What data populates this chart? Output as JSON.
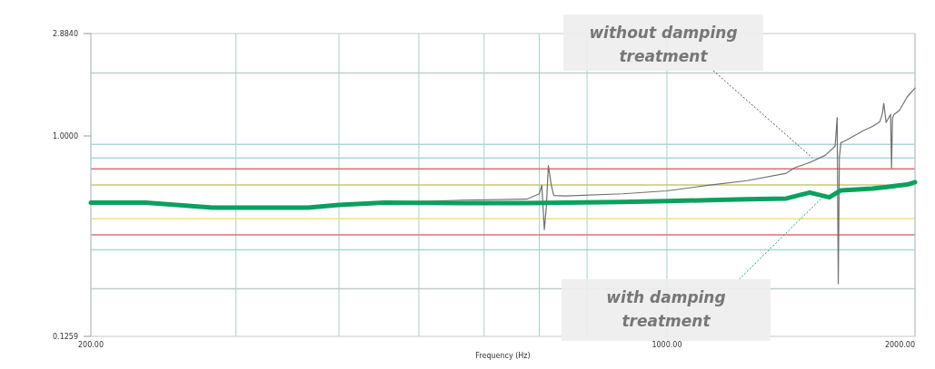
{
  "chart_data": {
    "type": "line",
    "xlabel": "Frequency (Hz)",
    "log": "xy",
    "xlim": [
      200,
      2000
    ],
    "ylim": [
      0.1259,
      2.884
    ],
    "xticks": [
      {
        "value": 200,
        "label": "200.00"
      },
      {
        "value": 300,
        "label": null
      },
      {
        "value": 400,
        "label": null
      },
      {
        "value": 500,
        "label": null
      },
      {
        "value": 600,
        "label": null
      },
      {
        "value": 700,
        "label": null
      },
      {
        "value": 800,
        "label": null
      },
      {
        "value": 1000,
        "label": "1000.00"
      },
      {
        "value": 2000,
        "label": "2000.00"
      }
    ],
    "yticks": [
      {
        "value": 0.1259,
        "label": "0.1259"
      },
      {
        "value": 1,
        "label": "1.0000"
      },
      {
        "value": 2.884,
        "label": "2.8840"
      }
    ],
    "grid": "x",
    "line_style": "solid",
    "ref_lines": [
      {
        "axis": "y",
        "value": 1.92,
        "color": "#c0cccc"
      },
      {
        "axis": "y",
        "value": 0.917,
        "color": "#a8d8dc"
      },
      {
        "axis": "y",
        "value": 0.797,
        "color": "#a8d8dc"
      },
      {
        "axis": "y",
        "value": 0.711,
        "color": "#e07070"
      },
      {
        "axis": "y",
        "value": 0.603,
        "color": "#c8c878"
      },
      {
        "axis": "y",
        "value": 0.425,
        "color": "#f0e088"
      },
      {
        "axis": "y",
        "value": 0.36,
        "color": "#e07070"
      },
      {
        "axis": "y",
        "value": 0.308,
        "color": "#a8d8dc"
      },
      {
        "axis": "y",
        "value": 0.206,
        "color": "#c0cccc"
      }
    ],
    "series": [
      {
        "name": "without damping treatment",
        "color": "#707070",
        "x": [
          454,
          563,
          676,
          700,
          705,
          710,
          714,
          718,
          724,
          729,
          753,
          884,
          1000,
          1122,
          1251,
          1396,
          1427,
          1490,
          1556,
          1600,
          1609,
          1614,
          1619,
          1626,
          1644,
          1736,
          1774,
          1813,
          1825,
          1833,
          1845,
          1868,
          1873,
          1878,
          1886,
          1914,
          1957,
          2000
        ],
        "values": [
          0.5,
          0.515,
          0.52,
          0.55,
          0.6,
          0.38,
          0.48,
          0.737,
          0.6,
          0.54,
          0.538,
          0.55,
          0.567,
          0.6,
          0.63,
          0.68,
          0.718,
          0.76,
          0.818,
          0.9,
          1.21,
          0.217,
          0.8,
          0.933,
          0.95,
          1.063,
          1.1,
          1.16,
          1.25,
          1.4,
          1.15,
          1.25,
          0.718,
          1.2,
          1.25,
          1.3,
          1.5,
          1.64
        ]
      },
      {
        "name": "with damping treatment",
        "color": "#0aa060",
        "x": [
          200,
          233,
          281,
          367,
          400,
          454,
          563,
          676,
          753,
          884,
          1000,
          1122,
          1251,
          1396,
          1490,
          1574,
          1626,
          1700,
          1774,
          1850,
          1914,
          1957,
          2000
        ],
        "values": [
          0.502,
          0.502,
          0.477,
          0.477,
          0.49,
          0.502,
          0.5,
          0.5,
          0.502,
          0.505,
          0.51,
          0.515,
          0.52,
          0.524,
          0.557,
          0.53,
          0.57,
          0.575,
          0.58,
          0.59,
          0.6,
          0.605,
          0.62
        ]
      }
    ]
  }
}
